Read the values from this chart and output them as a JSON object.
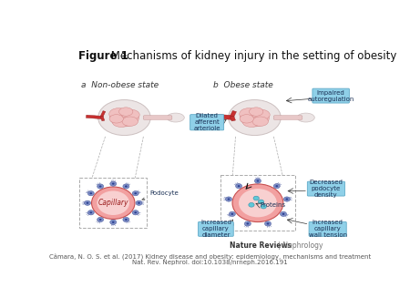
{
  "title_bold": "Figure 1",
  "title_regular": " Mechanisms of kidney injury in the setting of obesity",
  "title_fontsize": 8.5,
  "bg_color": "#ffffff",
  "label_a": "a  Non-obese state",
  "label_b": "b  Obese state",
  "label_fontsize": 6.5,
  "capillary_fill": "#f2a0a0",
  "capillary_edge": "#c85050",
  "capillary_inner": "#f8d0d0",
  "podocyte_body": "#8090c8",
  "podocyte_edge": "#5060a0",
  "glom_outer": "#ece5e5",
  "glom_outer_edge": "#ccc0c0",
  "glom_inner": "#f0c0c0",
  "glom_inner_edge": "#d08080",
  "artery_color": "#c83030",
  "artery_edge": "#902020",
  "tubule_color": "#e8c8c8",
  "tubule_edge": "#c09090",
  "annotation_bg": "#8fd0e8",
  "annotation_edge": "#60aac8",
  "annotation_text": "#1a3055",
  "protein_fill": "#60c8d8",
  "protein_edge": "#3090a8",
  "dashed_color": "#aaaaaa",
  "nr_bold_color": "#333333",
  "nr_light_color": "#777777",
  "caption_color": "#555555",
  "caption_line1": "Câmara, N. O. S. et al. (2017) Kidney disease and obesity: epidemiology, mechanisms and treatment",
  "caption_line2": "Nat. Rev. Nephrol. doi:10.1038/nrneph.2016.191",
  "caption_fontsize": 5.0,
  "nature_fontsize": 5.5
}
